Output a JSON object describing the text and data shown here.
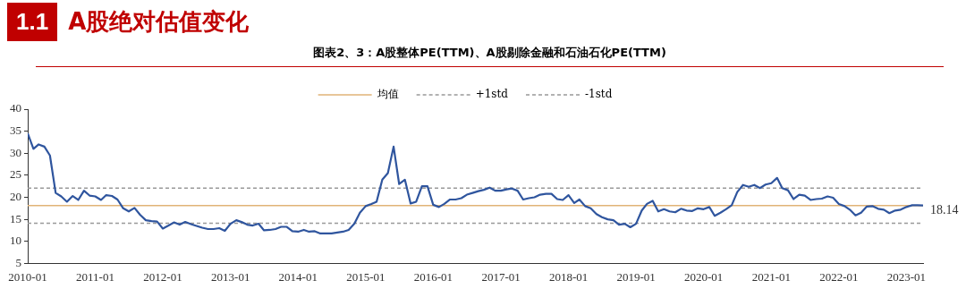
{
  "chart_data": {
    "type": "line",
    "title": "图表2、3：A股整体PE(TTM)、A股剔除金融和石油石化PE(TTM)",
    "annotations": [
      "1.1",
      "A股绝对估值变化",
      {
        "text": "18.14",
        "x": "2023-04",
        "y": 18.14
      }
    ],
    "x": [
      "2010-01",
      "2010-02",
      "2010-03",
      "2010-04",
      "2010-05",
      "2010-06",
      "2010-07",
      "2010-08",
      "2010-09",
      "2010-10",
      "2010-11",
      "2010-12",
      "2011-01",
      "2011-02",
      "2011-03",
      "2011-04",
      "2011-05",
      "2011-06",
      "2011-07",
      "2011-08",
      "2011-09",
      "2011-10",
      "2011-11",
      "2011-12",
      "2012-01",
      "2012-02",
      "2012-03",
      "2012-04",
      "2012-05",
      "2012-06",
      "2012-07",
      "2012-08",
      "2012-09",
      "2012-10",
      "2012-11",
      "2012-12",
      "2013-01",
      "2013-02",
      "2013-03",
      "2013-04",
      "2013-05",
      "2013-06",
      "2013-07",
      "2013-08",
      "2013-09",
      "2013-10",
      "2013-11",
      "2013-12",
      "2014-01",
      "2014-02",
      "2014-03",
      "2014-04",
      "2014-05",
      "2014-06",
      "2014-07",
      "2014-08",
      "2014-09",
      "2014-10",
      "2014-11",
      "2014-12",
      "2015-01",
      "2015-02",
      "2015-03",
      "2015-04",
      "2015-05",
      "2015-06",
      "2015-07",
      "2015-08",
      "2015-09",
      "2015-10",
      "2015-11",
      "2015-12",
      "2016-01",
      "2016-02",
      "2016-03",
      "2016-04",
      "2016-05",
      "2016-06",
      "2016-07",
      "2016-08",
      "2016-09",
      "2016-10",
      "2016-11",
      "2016-12",
      "2017-01",
      "2017-02",
      "2017-03",
      "2017-04",
      "2017-05",
      "2017-06",
      "2017-07",
      "2017-08",
      "2017-09",
      "2017-10",
      "2017-11",
      "2017-12",
      "2018-01",
      "2018-02",
      "2018-03",
      "2018-04",
      "2018-05",
      "2018-06",
      "2018-07",
      "2018-08",
      "2018-09",
      "2018-10",
      "2018-11",
      "2018-12",
      "2019-01",
      "2019-02",
      "2019-03",
      "2019-04",
      "2019-05",
      "2019-06",
      "2019-07",
      "2019-08",
      "2019-09",
      "2019-10",
      "2019-11",
      "2019-12",
      "2020-01",
      "2020-02",
      "2020-03",
      "2020-04",
      "2020-05",
      "2020-06",
      "2020-07",
      "2020-08",
      "2020-09",
      "2020-10",
      "2020-11",
      "2020-12",
      "2021-01",
      "2021-02",
      "2021-03",
      "2021-04",
      "2021-05",
      "2021-06",
      "2021-07",
      "2021-08",
      "2021-09",
      "2021-10",
      "2021-11",
      "2021-12",
      "2022-01",
      "2022-02",
      "2022-03",
      "2022-04",
      "2022-05",
      "2022-06",
      "2022-07",
      "2022-08",
      "2022-09",
      "2022-10",
      "2022-11",
      "2022-12",
      "2023-01",
      "2023-02",
      "2023-03",
      "2023-04"
    ],
    "series": [
      {
        "color": "#2f559e",
        "values": [
          34.5,
          31,
          32,
          31.5,
          29.5,
          21,
          20.2,
          19,
          20.3,
          19.4,
          21.5,
          20.4,
          20.2,
          19.4,
          20.5,
          20.3,
          19.5,
          17.5,
          16.8,
          17.6,
          16,
          14.8,
          14.6,
          14.5,
          12.9,
          13.6,
          14.3,
          13.8,
          14.4,
          13.9,
          13.5,
          13.1,
          12.8,
          12.8,
          13,
          12.4,
          14,
          14.8,
          14.4,
          13.8,
          13.6,
          14,
          12.5,
          12.6,
          12.8,
          13.3,
          13.3,
          12.3,
          12.2,
          12.6,
          12.2,
          12.3,
          11.8,
          11.8,
          11.8,
          12,
          12.2,
          12.6,
          14,
          16.5,
          18,
          18.5,
          19,
          24,
          25.5,
          31.5,
          23,
          24,
          18.6,
          19,
          22.5,
          22.5,
          18.3,
          17.8,
          18.5,
          19.5,
          19.5,
          19.8,
          20.6,
          21,
          21.4,
          21.7,
          22.2,
          21.5,
          21.5,
          21.8,
          22,
          21.5,
          19.5,
          19.8,
          20,
          20.6,
          20.8,
          20.8,
          19.6,
          19.4,
          20.5,
          18.7,
          19.5,
          18,
          17.5,
          16.2,
          15.5,
          15,
          14.8,
          13.8,
          14,
          13.2,
          14,
          17,
          18.5,
          19.2,
          16.8,
          17.3,
          16.8,
          16.6,
          17.4,
          17,
          16.9,
          17.5,
          17.3,
          17.8,
          15.8,
          16.5,
          17.3,
          18.2,
          21.2,
          22.8,
          22.4,
          22.8,
          22.1,
          22.9,
          23.2,
          24.4,
          22.1,
          21.6,
          19.6,
          20.6,
          20.4,
          19.4,
          19.6,
          19.7,
          20.2,
          19.9,
          18.5,
          18,
          17.2,
          15.9,
          16.5,
          17.9,
          18,
          17.4,
          17.2,
          16.4,
          17,
          17.2,
          17.8,
          18.2,
          18.2,
          18.14
        ]
      }
    ],
    "ref_lines": [
      {
        "axis": "y",
        "value": 18.1,
        "label": "均值",
        "color": "#e1b377",
        "line_style": "solid"
      },
      {
        "axis": "y",
        "value": 22.1,
        "label": "+1std",
        "color": "#999999",
        "line_style": "dashed"
      },
      {
        "axis": "y",
        "value": 14.1,
        "label": "-1std",
        "color": "#999999",
        "line_style": "dashed"
      }
    ],
    "xlim": [
      "2010-01",
      "2023-04"
    ],
    "xticks": [
      "2010-01",
      "2011-01",
      "2012-01",
      "2013-01",
      "2014-01",
      "2015-01",
      "2016-01",
      "2017-01",
      "2018-01",
      "2019-01",
      "2020-01",
      "2021-01",
      "2022-01",
      "2023-01"
    ],
    "ylim": [
      5,
      40
    ],
    "yticks": [
      5,
      10,
      15,
      20,
      25,
      30,
      35,
      40
    ],
    "grid": false,
    "legend": "top",
    "marker": "none",
    "line_style": "solid"
  }
}
